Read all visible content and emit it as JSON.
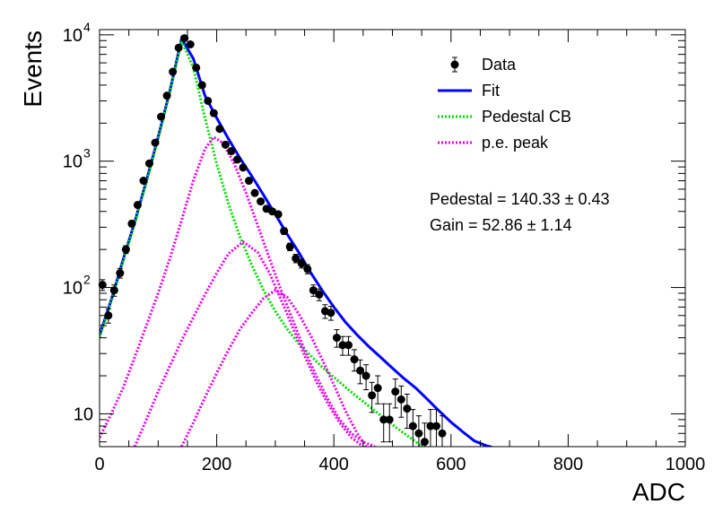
{
  "chart_data": {
    "type": "scatter",
    "xlabel": "ADC",
    "ylabel": "Events",
    "xlim": [
      0,
      1000
    ],
    "ylim": [
      5.5,
      11000
    ],
    "yscale": "log",
    "x_ticks": [
      "0",
      "200",
      "400",
      "600",
      "800",
      "1000"
    ],
    "y_tick_labels": [
      {
        "base": "10",
        "exp": "",
        "value": 10
      },
      {
        "base": "10",
        "exp": "2",
        "value": 100
      },
      {
        "base": "10",
        "exp": "3",
        "value": 1000
      },
      {
        "base": "10",
        "exp": "4",
        "value": 10000
      }
    ],
    "legend": {
      "position": "top-right",
      "entries": [
        {
          "label": "Data",
          "style": "marker",
          "color": "#000000"
        },
        {
          "label": "Fit",
          "style": "line",
          "color": "#0000ff"
        },
        {
          "label": "Pedestal CB",
          "style": "dotted",
          "color": "#00dd00"
        },
        {
          "label": "p.e. peak",
          "style": "dotted",
          "color": "#ee00ee"
        }
      ]
    },
    "annotations": [
      "Pedestal = 140.33 ± 0.43",
      "Gain = 52.86 ± 1.14"
    ],
    "series": [
      {
        "name": "Data",
        "type": "points",
        "color": "#000000",
        "x": [
          5,
          15,
          25,
          35,
          45,
          55,
          65,
          75,
          85,
          95,
          105,
          115,
          125,
          135,
          145,
          155,
          165,
          175,
          185,
          195,
          205,
          215,
          225,
          235,
          245,
          255,
          265,
          275,
          285,
          295,
          305,
          315,
          325,
          335,
          345,
          355,
          365,
          375,
          385,
          395,
          405,
          415,
          425,
          435,
          445,
          455,
          465,
          475,
          485,
          495,
          505,
          515,
          525,
          535,
          545,
          555,
          565,
          575,
          585
        ],
        "y": [
          105,
          60,
          95,
          130,
          200,
          320,
          450,
          700,
          960,
          1400,
          2250,
          3300,
          5100,
          7900,
          9400,
          8400,
          5500,
          4000,
          3000,
          2400,
          1800,
          1350,
          1200,
          1030,
          890,
          700,
          560,
          480,
          420,
          400,
          380,
          280,
          210,
          170,
          155,
          140,
          95,
          88,
          65,
          63,
          40,
          35,
          35,
          27,
          22,
          20,
          14,
          16,
          9,
          9,
          15,
          13,
          11,
          8,
          7,
          6,
          8,
          8,
          7
        ]
      },
      {
        "name": "Fit",
        "type": "line",
        "color": "#0000ff",
        "x": [
          0,
          20,
          40,
          60,
          80,
          100,
          120,
          140,
          160,
          180,
          200,
          220,
          240,
          260,
          280,
          300,
          320,
          340,
          360,
          380,
          400,
          420,
          440,
          460,
          480,
          500,
          520,
          540,
          560,
          580,
          600,
          620,
          640,
          660,
          670
        ],
        "y": [
          42,
          80,
          165,
          330,
          700,
          1550,
          3600,
          9300,
          6500,
          3300,
          2200,
          1500,
          1050,
          760,
          540,
          380,
          265,
          190,
          132,
          95,
          70,
          53,
          42,
          34,
          28,
          23,
          19,
          16,
          13,
          10.5,
          8.6,
          7.2,
          6.1,
          5.6,
          5.45
        ]
      },
      {
        "name": "Pedestal CB",
        "type": "line",
        "color": "#00dd00",
        "x": [
          0,
          20,
          40,
          60,
          80,
          100,
          120,
          140,
          160,
          180,
          200,
          220,
          240,
          260,
          280,
          300,
          320,
          340,
          360,
          380,
          400,
          420,
          440,
          460,
          480,
          500,
          520,
          540,
          550
        ],
        "y": [
          40,
          78,
          160,
          320,
          680,
          1500,
          3500,
          9000,
          5500,
          2200,
          950,
          460,
          250,
          150,
          95,
          65,
          47,
          36,
          29,
          23.5,
          19.5,
          16.2,
          13.6,
          11.5,
          9.7,
          8.2,
          7.0,
          6.0,
          5.5
        ]
      },
      {
        "name": "p.e. peak 1",
        "type": "line",
        "color": "#ee00ee",
        "x": [
          0,
          20,
          40,
          60,
          80,
          100,
          120,
          140,
          160,
          180,
          195,
          210,
          230,
          250,
          270,
          290,
          310,
          330,
          350,
          370,
          390,
          410,
          430,
          450,
          470
        ],
        "y": [
          6.5,
          10,
          16,
          28,
          50,
          90,
          170,
          340,
          700,
          1250,
          1550,
          1400,
          950,
          560,
          310,
          170,
          95,
          55,
          32,
          20,
          13,
          9,
          7,
          6,
          5.5
        ]
      },
      {
        "name": "p.e. peak 2",
        "type": "line",
        "color": "#ee00ee",
        "x": [
          60,
          80,
          100,
          120,
          140,
          160,
          180,
          200,
          220,
          245,
          270,
          290,
          310,
          330,
          350,
          370,
          390,
          410,
          430,
          450
        ],
        "y": [
          5.5,
          9,
          15,
          24,
          38,
          58,
          88,
          130,
          185,
          230,
          190,
          130,
          80,
          48,
          29,
          18,
          12,
          8.5,
          6.5,
          5.5
        ]
      },
      {
        "name": "p.e. peak 3",
        "type": "line",
        "color": "#ee00ee",
        "x": [
          140,
          160,
          180,
          200,
          220,
          240,
          260,
          280,
          300,
          320,
          340,
          360,
          380,
          400,
          420,
          440,
          455
        ],
        "y": [
          5.5,
          8.5,
          13.5,
          21,
          32,
          47,
          63,
          82,
          95,
          84,
          62,
          42,
          27,
          17,
          10.5,
          7,
          5.5
        ]
      }
    ]
  }
}
